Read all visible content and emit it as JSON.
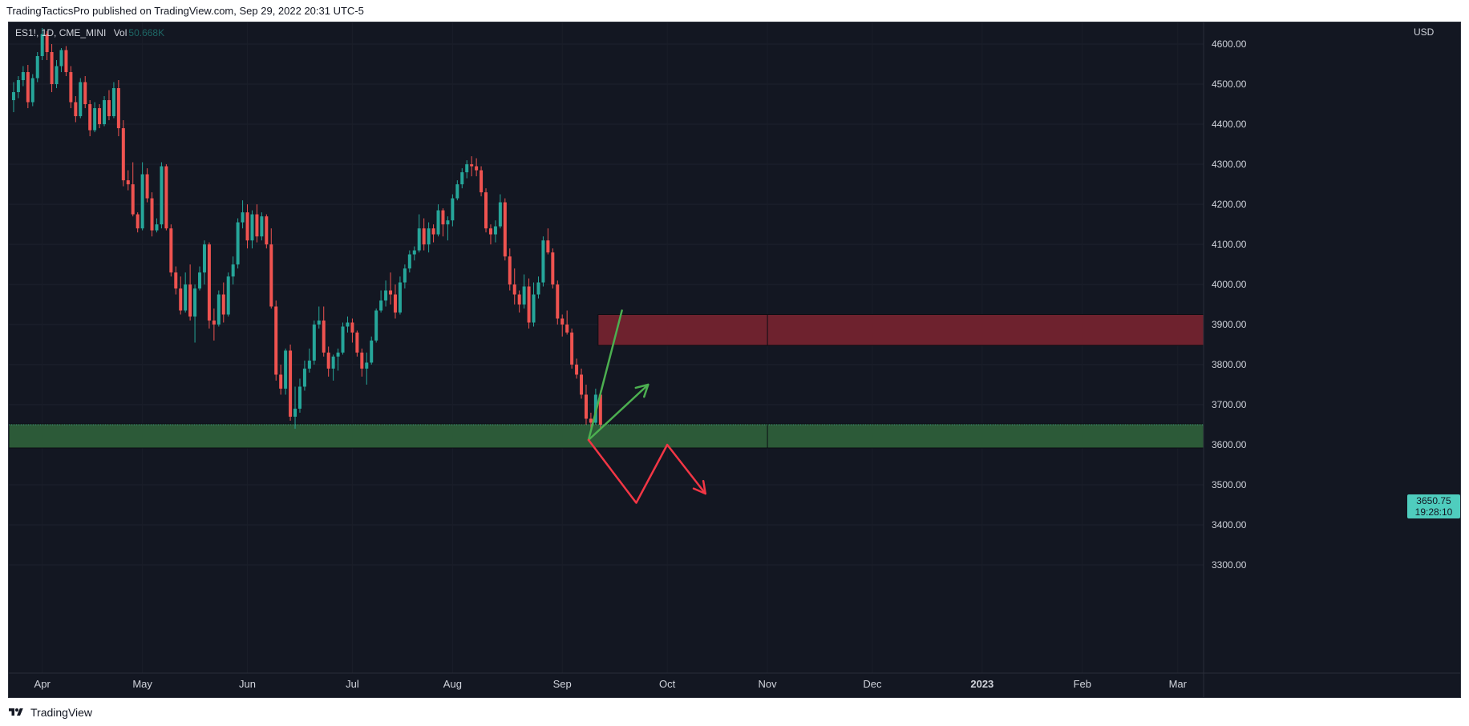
{
  "header": {
    "published_text": "TradingTacticsPro published on TradingView.com, Sep 29, 2022 20:31 UTC-5"
  },
  "legend": {
    "symbol_text": "ES1!, 1D, CME_MINI",
    "vol_label": "Vol",
    "vol_value": "50.668K"
  },
  "price_axis": {
    "currency": "USD",
    "last_price": "3650.75",
    "countdown": "19:28:10"
  },
  "footer": {
    "brand": "TradingView"
  },
  "colors": {
    "background": "#131722",
    "up": "#26a69a",
    "down": "#ef5350",
    "resistance_zone": "#6e222e",
    "support_zone": "#2c5a38",
    "arrow_green": "#4caf50",
    "arrow_red": "#f23645",
    "last_price_tag": "#4fcdbe"
  },
  "chart_data": {
    "type": "candlestick",
    "symbol": "ES1!",
    "timeframe": "1D",
    "exchange": "CME_MINI",
    "ylim": [
      3260,
      4650
    ],
    "yticks": [
      "4600.00",
      "4500.00",
      "4400.00",
      "4300.00",
      "4200.00",
      "4100.00",
      "4000.00",
      "3900.00",
      "3800.00",
      "3700.00",
      "3600.00",
      "3500.00",
      "3400.00",
      "3300.00"
    ],
    "xticks": [
      {
        "label": "Apr",
        "date": "2022-04-01"
      },
      {
        "label": "May",
        "date": "2022-05-02"
      },
      {
        "label": "Jun",
        "date": "2022-06-01"
      },
      {
        "label": "Jul",
        "date": "2022-07-01"
      },
      {
        "label": "Aug",
        "date": "2022-08-01"
      },
      {
        "label": "Sep",
        "date": "2022-09-01"
      },
      {
        "label": "Oct",
        "date": "2022-10-03"
      },
      {
        "label": "Nov",
        "date": "2022-11-01"
      },
      {
        "label": "Dec",
        "date": "2022-12-01"
      },
      {
        "label": "2023",
        "date": "2023-01-03"
      },
      {
        "label": "Feb",
        "date": "2023-02-01"
      },
      {
        "label": "Mar",
        "date": "2023-03-01"
      }
    ],
    "start_date": "2022-03-24",
    "candles": [
      [
        4460,
        4505,
        4430,
        4480
      ],
      [
        4480,
        4520,
        4465,
        4510
      ],
      [
        4510,
        4545,
        4495,
        4530
      ],
      [
        4530,
        4548,
        4440,
        4455
      ],
      [
        4455,
        4525,
        4445,
        4515
      ],
      [
        4515,
        4580,
        4505,
        4570
      ],
      [
        4570,
        4640,
        4560,
        4625
      ],
      [
        4625,
        4632,
        4560,
        4580
      ],
      [
        4580,
        4600,
        4480,
        4500
      ],
      [
        4500,
        4560,
        4490,
        4545
      ],
      [
        4545,
        4590,
        4530,
        4585
      ],
      [
        4585,
        4595,
        4520,
        4530
      ],
      [
        4530,
        4545,
        4440,
        4455
      ],
      [
        4455,
        4470,
        4405,
        4420
      ],
      [
        4420,
        4515,
        4415,
        4505
      ],
      [
        4505,
        4520,
        4440,
        4450
      ],
      [
        4450,
        4460,
        4370,
        4385
      ],
      [
        4385,
        4455,
        4380,
        4440
      ],
      [
        4440,
        4450,
        4390,
        4400
      ],
      [
        4400,
        4470,
        4395,
        4460
      ],
      [
        4460,
        4485,
        4410,
        4420
      ],
      [
        4420,
        4505,
        4415,
        4490
      ],
      [
        4490,
        4510,
        4370,
        4390
      ],
      [
        4390,
        4410,
        4245,
        4260
      ],
      [
        4260,
        4285,
        4235,
        4250
      ],
      [
        4250,
        4305,
        4170,
        4175
      ],
      [
        4175,
        4180,
        4130,
        4140
      ],
      [
        4140,
        4305,
        4135,
        4275
      ],
      [
        4275,
        4290,
        4205,
        4215
      ],
      [
        4215,
        4230,
        4120,
        4135
      ],
      [
        4135,
        4165,
        4130,
        4150
      ],
      [
        4150,
        4305,
        4140,
        4295
      ],
      [
        4295,
        4300,
        4135,
        4140
      ],
      [
        4140,
        4150,
        4020,
        4030
      ],
      [
        4030,
        4045,
        3975,
        3990
      ],
      [
        3990,
        4020,
        3925,
        3935
      ],
      [
        3935,
        4030,
        3930,
        4000
      ],
      [
        4000,
        4050,
        3910,
        3920
      ],
      [
        3920,
        4000,
        3855,
        3990
      ],
      [
        3990,
        4045,
        3985,
        4030
      ],
      [
        4030,
        4110,
        4000,
        4100
      ],
      [
        4100,
        4105,
        3890,
        3910
      ],
      [
        3910,
        3940,
        3860,
        3900
      ],
      [
        3900,
        3985,
        3895,
        3975
      ],
      [
        3975,
        4005,
        3905,
        3925
      ],
      [
        3925,
        4030,
        3920,
        4020
      ],
      [
        4020,
        4070,
        4000,
        4050
      ],
      [
        4050,
        4165,
        4040,
        4155
      ],
      [
        4155,
        4210,
        4140,
        4180
      ],
      [
        4180,
        4200,
        4090,
        4110
      ],
      [
        4110,
        4185,
        4090,
        4175
      ],
      [
        4175,
        4200,
        4105,
        4120
      ],
      [
        4120,
        4180,
        4110,
        4170
      ],
      [
        4170,
        4175,
        4090,
        4100
      ],
      [
        4100,
        4140,
        3940,
        3945
      ],
      [
        3945,
        3960,
        3760,
        3775
      ],
      [
        3775,
        3800,
        3725,
        3740
      ],
      [
        3740,
        3840,
        3725,
        3835
      ],
      [
        3835,
        3850,
        3660,
        3670
      ],
      [
        3670,
        3745,
        3640,
        3690
      ],
      [
        3690,
        3765,
        3680,
        3745
      ],
      [
        3745,
        3810,
        3735,
        3790
      ],
      [
        3790,
        3840,
        3780,
        3810
      ],
      [
        3810,
        3910,
        3800,
        3900
      ],
      [
        3900,
        3945,
        3890,
        3910
      ],
      [
        3910,
        3945,
        3820,
        3830
      ],
      [
        3830,
        3845,
        3770,
        3790
      ],
      [
        3790,
        3825,
        3760,
        3820
      ],
      [
        3820,
        3840,
        3785,
        3830
      ],
      [
        3830,
        3905,
        3825,
        3895
      ],
      [
        3895,
        3920,
        3880,
        3905
      ],
      [
        3905,
        3915,
        3855,
        3880
      ],
      [
        3880,
        3885,
        3820,
        3830
      ],
      [
        3830,
        3840,
        3770,
        3790
      ],
      [
        3790,
        3830,
        3750,
        3805
      ],
      [
        3805,
        3870,
        3800,
        3860
      ],
      [
        3860,
        3940,
        3855,
        3935
      ],
      [
        3935,
        3985,
        3930,
        3960
      ],
      [
        3960,
        4010,
        3945,
        3985
      ],
      [
        3985,
        4030,
        3950,
        3975
      ],
      [
        3975,
        4000,
        3915,
        3930
      ],
      [
        3930,
        4020,
        3925,
        4005
      ],
      [
        4005,
        4050,
        3990,
        4040
      ],
      [
        4040,
        4085,
        4030,
        4075
      ],
      [
        4075,
        4095,
        4060,
        4085
      ],
      [
        4085,
        4175,
        4080,
        4140
      ],
      [
        4140,
        4165,
        4085,
        4100
      ],
      [
        4100,
        4155,
        4080,
        4140
      ],
      [
        4140,
        4150,
        4105,
        4125
      ],
      [
        4125,
        4200,
        4120,
        4185
      ],
      [
        4185,
        4190,
        4120,
        4150
      ],
      [
        4150,
        4170,
        4110,
        4160
      ],
      [
        4160,
        4225,
        4145,
        4215
      ],
      [
        4215,
        4260,
        4210,
        4250
      ],
      [
        4250,
        4290,
        4240,
        4280
      ],
      [
        4280,
        4310,
        4265,
        4300
      ],
      [
        4300,
        4320,
        4270,
        4295
      ],
      [
        4295,
        4315,
        4270,
        4285
      ],
      [
        4285,
        4295,
        4220,
        4230
      ],
      [
        4230,
        4240,
        4130,
        4140
      ],
      [
        4140,
        4150,
        4100,
        4125
      ],
      [
        4125,
        4160,
        4105,
        4145
      ],
      [
        4145,
        4225,
        4140,
        4205
      ],
      [
        4205,
        4215,
        4060,
        4070
      ],
      [
        4070,
        4090,
        3985,
        4000
      ],
      [
        4000,
        4040,
        3950,
        3975
      ],
      [
        3975,
        3985,
        3930,
        3950
      ],
      [
        3950,
        4025,
        3940,
        3995
      ],
      [
        3995,
        4015,
        3890,
        3905
      ],
      [
        3905,
        4005,
        3895,
        3975
      ],
      [
        3975,
        4020,
        3965,
        4005
      ],
      [
        4005,
        4120,
        3995,
        4110
      ],
      [
        4110,
        4140,
        4075,
        4080
      ],
      [
        4080,
        4090,
        3990,
        4000
      ],
      [
        4000,
        4010,
        3900,
        3915
      ],
      [
        3915,
        3925,
        3870,
        3900
      ],
      [
        3900,
        3935,
        3875,
        3880
      ],
      [
        3880,
        3890,
        3790,
        3800
      ],
      [
        3800,
        3815,
        3765,
        3775
      ],
      [
        3775,
        3790,
        3715,
        3725
      ],
      [
        3725,
        3750,
        3650,
        3665
      ],
      [
        3665,
        3680,
        3640,
        3655
      ],
      [
        3655,
        3740,
        3650,
        3725
      ],
      [
        3725,
        3735,
        3640,
        3650
      ]
    ],
    "zones": [
      {
        "name": "resistance",
        "top": 3925,
        "bottom": 3848,
        "from_index": 123
      },
      {
        "name": "support",
        "top": 3652,
        "bottom": 3592,
        "from_index": -1
      }
    ],
    "drawings": [
      {
        "name": "green-trend-line",
        "color": "green",
        "points": [
          [
            4.5,
            3935
          ],
          [
            -2.5,
            3612
          ]
        ]
      },
      {
        "name": "green-bounce-arrow",
        "color": "green",
        "points": [
          [
            -2.5,
            3612
          ],
          [
            10,
            3750
          ]
        ]
      },
      {
        "name": "red-drop-arrow",
        "color": "red",
        "points": [
          [
            -2.5,
            3612
          ],
          [
            7.5,
            3455
          ],
          [
            14,
            3600
          ],
          [
            22,
            3478
          ]
        ]
      }
    ]
  }
}
